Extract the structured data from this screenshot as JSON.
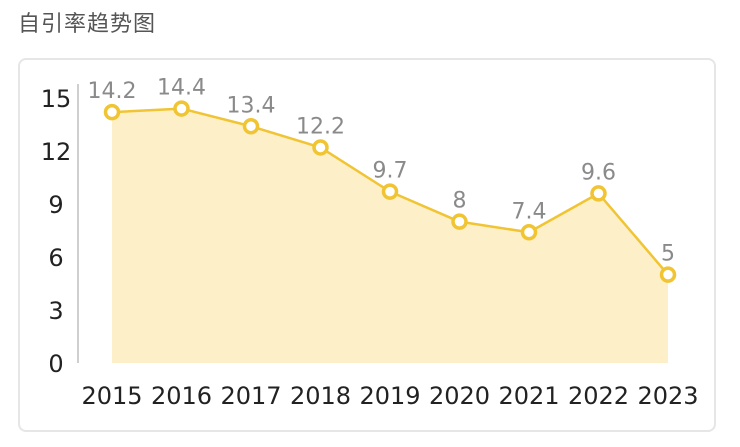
{
  "page": {
    "title": "自引率趋势图"
  },
  "colors": {
    "line": "#f0c433",
    "area": "#fdf0c8",
    "point_fill": "#ffffff",
    "axis": "#cfcfcf",
    "tick_text": "#222222",
    "label_text": "#8a8a8a"
  },
  "chart_data": {
    "type": "area",
    "title": "自引率趋势图",
    "xlabel": "",
    "ylabel": "",
    "categories": [
      "2015",
      "2016",
      "2017",
      "2018",
      "2019",
      "2020",
      "2021",
      "2022",
      "2023"
    ],
    "series": [
      {
        "values": [
          14.2,
          14.4,
          13.4,
          12.2,
          9.7,
          8,
          7.4,
          9.6,
          5
        ],
        "labels": [
          "14.2",
          "14.4",
          "13.4",
          "12.2",
          "9.7",
          "8",
          "7.4",
          "9.6",
          "5"
        ]
      }
    ],
    "ylim": [
      0,
      15
    ],
    "yticks": [
      "0",
      "3",
      "6",
      "9",
      "12",
      "15"
    ],
    "grid": false,
    "legend": "none"
  }
}
